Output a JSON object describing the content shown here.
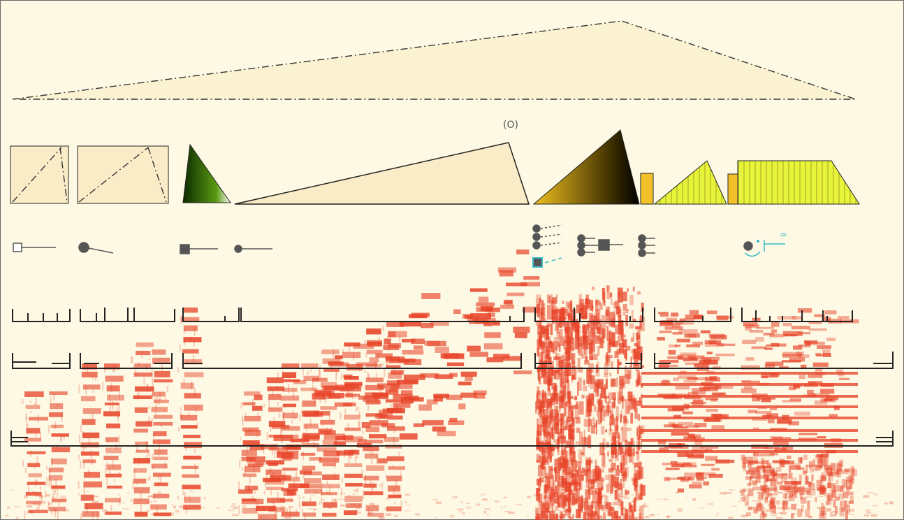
{
  "score": {
    "annotation": "(O)",
    "symbol": "≃"
  }
}
